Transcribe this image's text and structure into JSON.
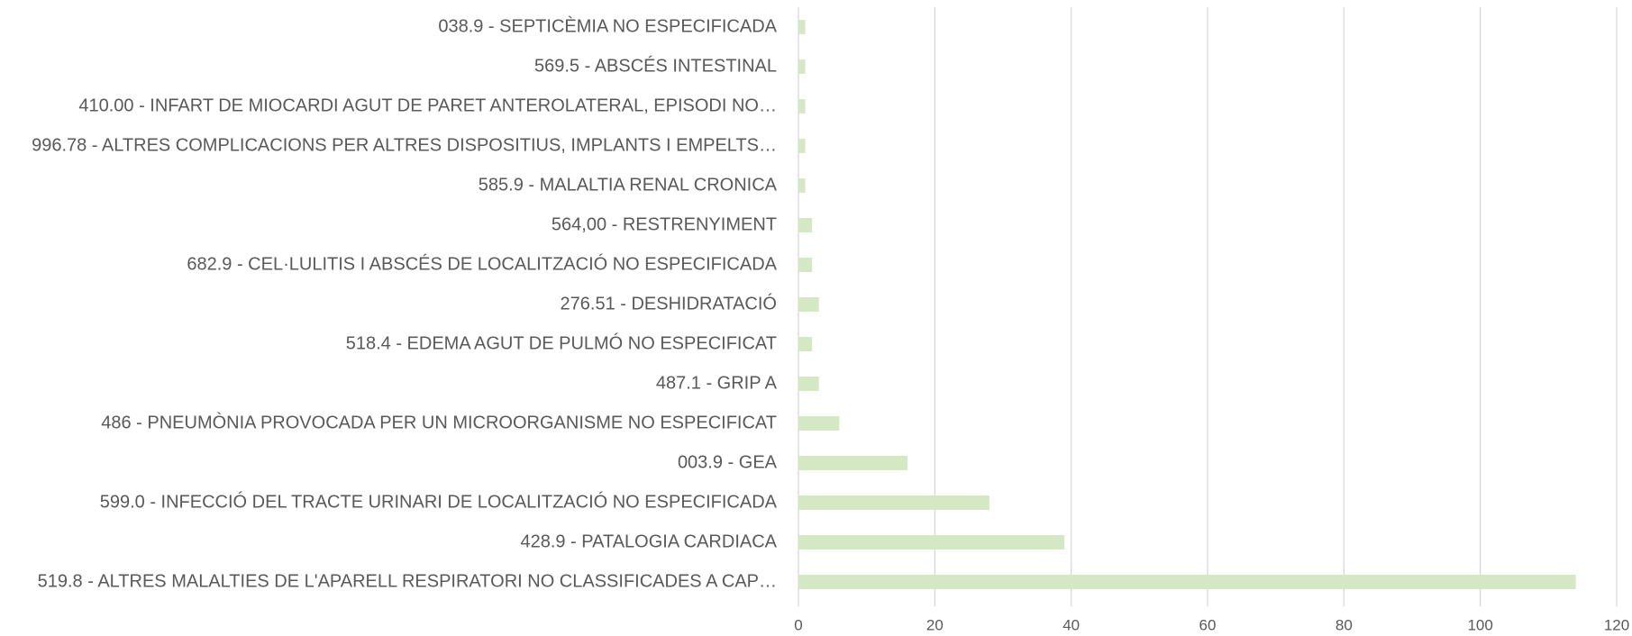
{
  "chart_data": {
    "type": "barh",
    "categories": [
      "038.9 - SEPTICÈMIA NO ESPECIFICADA",
      "569.5 - ABSCÉS INTESTINAL",
      "410.00 - INFART DE MIOCARDI AGUT DE PARET ANTEROLATERAL, EPISODI NO…",
      "996.78 - ALTRES COMPLICACIONS PER ALTRES DISPOSITIUS, IMPLANTS I EMPELTS…",
      "585.9 - MALALTIA RENAL CRONICA",
      "564,00 - RESTRENYIMENT",
      "682.9 - CEL·LULITIS I ABSCÉS DE LOCALITZACIÓ NO ESPECIFICADA",
      "276.51 - DESHIDRATACIÓ",
      "518.4 - EDEMA AGUT DE PULMÓ NO ESPECIFICAT",
      "487.1 - GRIP A",
      "486 - PNEUMÒNIA PROVOCADA PER UN MICROORGANISME NO ESPECIFICAT",
      "003.9 - GEA",
      "599.0 - INFECCIÓ DEL TRACTE URINARI DE LOCALITZACIÓ NO ESPECIFICADA",
      "428.9  - PATALOGIA CARDIACA",
      "519.8 - ALTRES MALALTIES DE L'APARELL RESPIRATORI NO CLASSIFICADES A CAP…"
    ],
    "values": [
      1,
      1,
      1,
      1,
      1,
      2,
      2,
      3,
      2,
      3,
      6,
      16,
      28,
      39,
      114
    ],
    "color": "#d5e8c4",
    "xlim": [
      0,
      120
    ],
    "xticks": [
      0,
      20,
      40,
      60,
      80,
      100,
      120
    ],
    "grid": true
  }
}
